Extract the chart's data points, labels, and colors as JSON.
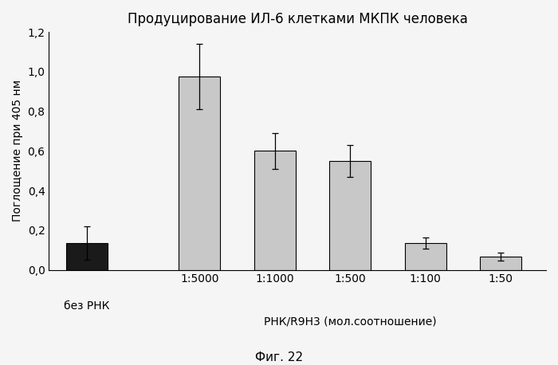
{
  "title": "Продуцирование ИЛ-6 клетками МКПК человека",
  "xlabel": "РНК/R9H3 (мол.соотношение)",
  "ylabel": "Поглощение при 405 нм",
  "caption": "Фиг. 22",
  "categories": [
    "без РНК",
    "1:5000",
    "1:1000",
    "1:500",
    "1:100",
    "1:50"
  ],
  "values": [
    0.135,
    0.975,
    0.6,
    0.55,
    0.135,
    0.065
  ],
  "errors": [
    0.085,
    0.165,
    0.09,
    0.08,
    0.03,
    0.02
  ],
  "bar_color_first": "#1a1a1a",
  "bar_color_rest": "#c8c8c8",
  "bar_edgecolor": "#000000",
  "ylim": [
    0,
    1.2
  ],
  "yticks": [
    0.0,
    0.2,
    0.4,
    0.6,
    0.8,
    1.0,
    1.2
  ],
  "ytick_labels": [
    "0,0",
    "0,2",
    "0,4",
    "0,6",
    "0,8",
    "1,0",
    "1,2"
  ],
  "title_fontsize": 12,
  "label_fontsize": 10,
  "tick_fontsize": 10,
  "caption_fontsize": 11,
  "background_color": "#f5f5f5",
  "bar_width": 0.55
}
